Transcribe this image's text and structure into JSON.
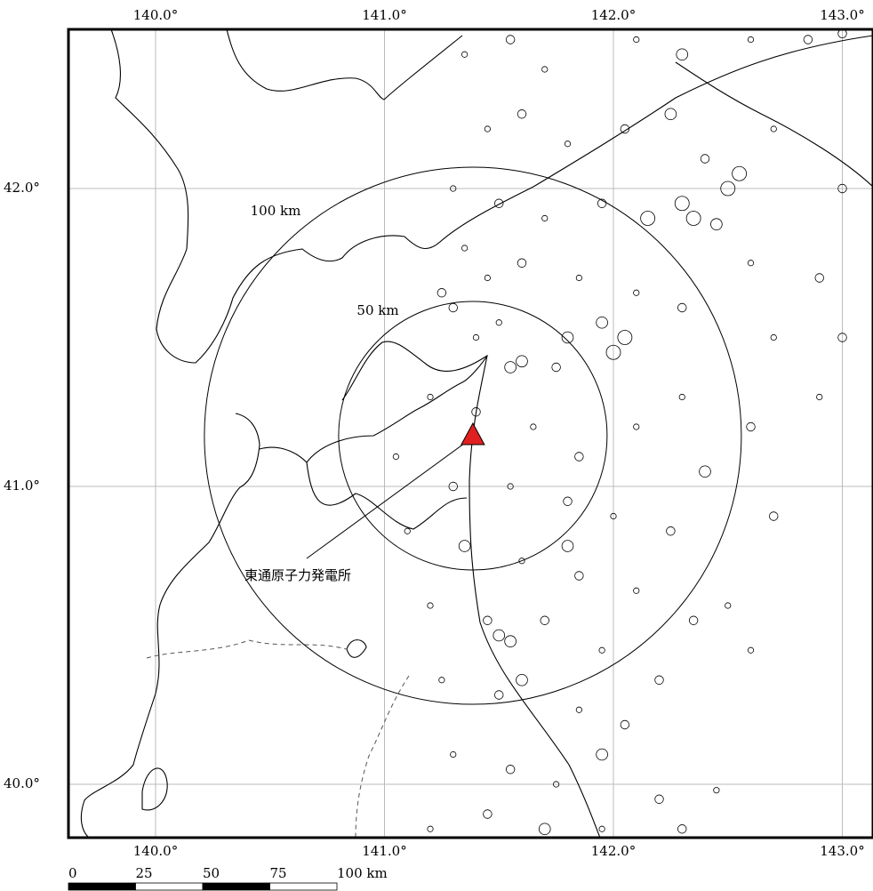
{
  "map": {
    "lon_ticks": [
      {
        "value": 140,
        "label": "140.0°"
      },
      {
        "value": 141,
        "label": "141.0°"
      },
      {
        "value": 142,
        "label": "142.0°"
      },
      {
        "value": 143,
        "label": "143.0°"
      }
    ],
    "lat_ticks": [
      {
        "value": 42,
        "label": "42.0°"
      },
      {
        "value": 41,
        "label": "41.0°"
      },
      {
        "value": 40,
        "label": "40.0°"
      }
    ],
    "range_rings": [
      {
        "value": 100,
        "label": "100 km"
      },
      {
        "value": 50,
        "label": "50 km"
      }
    ],
    "plant": {
      "label": "東通原子力発電所",
      "lon": 141.386,
      "lat": 41.17,
      "color": "#e02020"
    },
    "scale_bar": [
      {
        "value": 0,
        "label": "0"
      },
      {
        "value": 25,
        "label": "25"
      },
      {
        "value": 50,
        "label": "50"
      },
      {
        "value": 75,
        "label": "75"
      },
      {
        "value": 100,
        "label": "100 km"
      }
    ],
    "epicenters": [
      [
        141.35,
        42.45,
        2
      ],
      [
        141.55,
        42.5,
        3
      ],
      [
        141.7,
        42.4,
        2
      ],
      [
        141.9,
        42.55,
        3
      ],
      [
        142.1,
        42.5,
        2
      ],
      [
        142.3,
        42.45,
        4
      ],
      [
        142.6,
        42.5,
        2
      ],
      [
        142.85,
        42.5,
        3
      ],
      [
        143.0,
        42.52,
        3
      ],
      [
        141.45,
        42.2,
        2
      ],
      [
        141.6,
        42.25,
        3
      ],
      [
        141.8,
        42.15,
        2
      ],
      [
        142.05,
        42.2,
        3
      ],
      [
        142.25,
        42.25,
        4
      ],
      [
        142.4,
        42.1,
        3
      ],
      [
        142.7,
        42.2,
        2
      ],
      [
        143.0,
        42.0,
        3
      ],
      [
        141.3,
        42.0,
        2
      ],
      [
        141.5,
        41.95,
        3
      ],
      [
        141.7,
        41.9,
        2
      ],
      [
        141.95,
        41.95,
        3
      ],
      [
        142.15,
        41.9,
        5
      ],
      [
        142.3,
        41.95,
        5
      ],
      [
        142.35,
        41.9,
        5
      ],
      [
        142.5,
        42.0,
        5
      ],
      [
        142.55,
        42.05,
        5
      ],
      [
        142.45,
        41.88,
        4
      ],
      [
        142.6,
        41.75,
        2
      ],
      [
        142.9,
        41.7,
        3
      ],
      [
        141.35,
        41.8,
        2
      ],
      [
        141.6,
        41.75,
        3
      ],
      [
        141.85,
        41.7,
        2
      ],
      [
        142.1,
        41.65,
        2
      ],
      [
        142.3,
        41.6,
        3
      ],
      [
        142.7,
        41.5,
        2
      ],
      [
        143.0,
        41.5,
        3
      ],
      [
        141.3,
        41.6,
        3
      ],
      [
        141.5,
        41.55,
        2
      ],
      [
        141.8,
        41.5,
        4
      ],
      [
        141.95,
        41.55,
        4
      ],
      [
        142.05,
        41.5,
        5
      ],
      [
        142.0,
        41.45,
        5
      ],
      [
        141.55,
        41.4,
        4
      ],
      [
        141.6,
        41.42,
        4
      ],
      [
        141.75,
        41.4,
        3
      ],
      [
        142.3,
        41.3,
        2
      ],
      [
        142.6,
        41.2,
        3
      ],
      [
        142.9,
        41.3,
        2
      ],
      [
        141.2,
        41.3,
        2
      ],
      [
        141.4,
        41.25,
        3
      ],
      [
        141.65,
        41.2,
        2
      ],
      [
        141.85,
        41.1,
        3
      ],
      [
        142.1,
        41.2,
        2
      ],
      [
        142.4,
        41.05,
        4
      ],
      [
        142.7,
        40.9,
        3
      ],
      [
        141.05,
        41.1,
        2
      ],
      [
        141.3,
        41.0,
        3
      ],
      [
        141.55,
        41.0,
        2
      ],
      [
        141.8,
        40.95,
        3
      ],
      [
        142.0,
        40.9,
        2
      ],
      [
        142.25,
        40.85,
        3
      ],
      [
        142.5,
        40.6,
        2
      ],
      [
        141.1,
        40.85,
        2
      ],
      [
        141.35,
        40.8,
        4
      ],
      [
        141.6,
        40.75,
        2
      ],
      [
        141.8,
        40.8,
        4
      ],
      [
        141.85,
        40.7,
        3
      ],
      [
        142.1,
        40.65,
        2
      ],
      [
        142.35,
        40.55,
        3
      ],
      [
        142.6,
        40.45,
        2
      ],
      [
        141.2,
        40.6,
        2
      ],
      [
        141.45,
        40.55,
        3
      ],
      [
        141.5,
        40.5,
        4
      ],
      [
        141.55,
        40.48,
        4
      ],
      [
        141.7,
        40.55,
        3
      ],
      [
        141.95,
        40.45,
        2
      ],
      [
        142.2,
        40.35,
        3
      ],
      [
        141.25,
        40.35,
        2
      ],
      [
        141.5,
        40.3,
        3
      ],
      [
        141.6,
        40.35,
        4
      ],
      [
        141.85,
        40.25,
        2
      ],
      [
        142.05,
        40.2,
        3
      ],
      [
        141.3,
        40.1,
        2
      ],
      [
        141.55,
        40.05,
        3
      ],
      [
        141.75,
        40.0,
        2
      ],
      [
        141.95,
        40.1,
        4
      ],
      [
        142.2,
        39.95,
        3
      ],
      [
        142.45,
        39.98,
        2
      ],
      [
        141.2,
        39.85,
        2
      ],
      [
        141.45,
        39.9,
        3
      ],
      [
        141.7,
        39.85,
        4
      ],
      [
        141.95,
        39.85,
        2
      ],
      [
        142.3,
        39.85,
        3
      ],
      [
        141.4,
        41.5,
        2
      ],
      [
        141.25,
        41.65,
        3
      ],
      [
        141.45,
        41.7,
        2
      ]
    ]
  }
}
